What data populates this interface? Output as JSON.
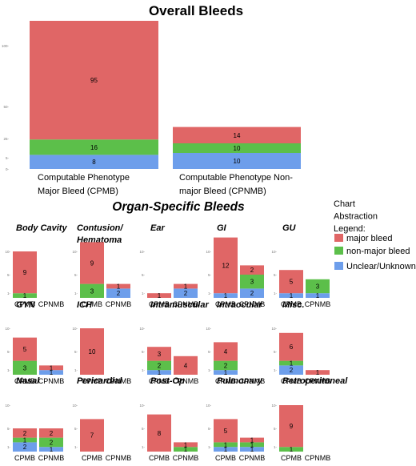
{
  "colors": {
    "major": "#e06666",
    "nonmajor": "#5cbf4a",
    "unclear": "#6d9eeb"
  },
  "chart_data": [
    {
      "type": "bar",
      "stacked": true,
      "title": "Overall Bleeds",
      "categories": [
        "Computable Phenotype Major Bleed (CPMB)",
        "Computable Phenotype Non-major Bleed (CPNMB)"
      ],
      "category_lines": [
        [
          "Computable Phenotype",
          "Major Bleed (CPMB)"
        ],
        [
          "Computable Phenotype Non-",
          "major Bleed (CPNMB)"
        ]
      ],
      "y_ticks": [
        "100-",
        "50-",
        "25-",
        "5-",
        "0-"
      ],
      "series": [
        {
          "name": "Unclear/Unknown",
          "color_key": "unclear",
          "values": [
            8,
            10
          ]
        },
        {
          "name": "non-major bleed",
          "color_key": "nonmajor",
          "values": [
            16,
            10
          ]
        },
        {
          "name": "major bleed",
          "color_key": "major",
          "values": [
            95,
            14
          ]
        }
      ]
    },
    {
      "type": "bar",
      "stacked": true,
      "title": "Organ-Specific Bleeds",
      "categories": [
        "CPMB",
        "CPNMB"
      ],
      "y_ticks": [
        "10-",
        "5-",
        "1-"
      ],
      "panels": [
        {
          "title": [
            "Body Cavity"
          ],
          "CPMB": {
            "major": 9,
            "nonmajor": 1,
            "unclear": 0
          },
          "CPNMB": {
            "major": 0,
            "nonmajor": 0,
            "unclear": 0
          }
        },
        {
          "title": [
            "Contusion/",
            "Hematoma"
          ],
          "CPMB": {
            "major": 9,
            "nonmajor": 3,
            "unclear": 0
          },
          "CPNMB": {
            "major": 1,
            "nonmajor": 0,
            "unclear": 2
          }
        },
        {
          "title": [
            "Ear"
          ],
          "CPMB": {
            "major": 1,
            "nonmajor": 0,
            "unclear": 0
          },
          "CPNMB": {
            "major": 1,
            "nonmajor": 0,
            "unclear": 2
          }
        },
        {
          "title": [
            "GI"
          ],
          "CPMB": {
            "major": 12,
            "nonmajor": 0,
            "unclear": 1
          },
          "CPNMB": {
            "major": 2,
            "nonmajor": 3,
            "unclear": 2
          }
        },
        {
          "title": [
            "GU"
          ],
          "CPMB": {
            "major": 5,
            "nonmajor": 0,
            "unclear": 1
          },
          "CPNMB": {
            "major": 0,
            "nonmajor": 3,
            "unclear": 1
          }
        },
        {
          "title": [
            "GYN"
          ],
          "CPMB": {
            "major": 5,
            "nonmajor": 3,
            "unclear": 0
          },
          "CPNMB": {
            "major": 1,
            "nonmajor": 0,
            "unclear": 1
          }
        },
        {
          "title": [
            "ICH"
          ],
          "CPMB": {
            "major": 10,
            "nonmajor": 0,
            "unclear": 0
          },
          "CPNMB": {
            "major": 0,
            "nonmajor": 0,
            "unclear": 0
          }
        },
        {
          "title": [
            "Intramuscular"
          ],
          "CPMB": {
            "major": 3,
            "nonmajor": 2,
            "unclear": 1
          },
          "CPNMB": {
            "major": 4,
            "nonmajor": 0,
            "unclear": 0
          }
        },
        {
          "title": [
            "Intraocular"
          ],
          "CPMB": {
            "major": 4,
            "nonmajor": 2,
            "unclear": 1
          },
          "CPNMB": {
            "major": 0,
            "nonmajor": 0,
            "unclear": 0
          }
        },
        {
          "title": [
            "Misc."
          ],
          "CPMB": {
            "major": 6,
            "nonmajor": 1,
            "unclear": 2
          },
          "CPNMB": {
            "major": 1,
            "nonmajor": 0,
            "unclear": 0
          }
        },
        {
          "title": [
            "Nasal"
          ],
          "CPMB": {
            "major": 2,
            "nonmajor": 1,
            "unclear": 2
          },
          "CPNMB": {
            "major": 2,
            "nonmajor": 2,
            "unclear": 1
          }
        },
        {
          "title": [
            "Pericardial"
          ],
          "CPMB": {
            "major": 7,
            "nonmajor": 0,
            "unclear": 0
          },
          "CPNMB": {
            "major": 0,
            "nonmajor": 0,
            "unclear": 0
          }
        },
        {
          "title": [
            "Post-Op"
          ],
          "CPMB": {
            "major": 8,
            "nonmajor": 0,
            "unclear": 0
          },
          "CPNMB": {
            "major": 1,
            "nonmajor": 1,
            "unclear": 0
          }
        },
        {
          "title": [
            "Pulmonary"
          ],
          "CPMB": {
            "major": 5,
            "nonmajor": 1,
            "unclear": 1
          },
          "CPNMB": {
            "major": 1,
            "nonmajor": 1,
            "unclear": 1
          }
        },
        {
          "title": [
            "Retroperitoneal"
          ],
          "CPMB": {
            "major": 9,
            "nonmajor": 1,
            "unclear": 0
          },
          "CPNMB": {
            "major": 0,
            "nonmajor": 0,
            "unclear": 0
          }
        }
      ]
    }
  ],
  "legend": {
    "title_lines": [
      "Chart",
      "Abstraction",
      "Legend:"
    ],
    "items": [
      {
        "label": "major bleed",
        "color_key": "major"
      },
      {
        "label": "non-major bleed",
        "color_key": "nonmajor"
      },
      {
        "label": "Unclear/Unknown",
        "color_key": "unclear"
      }
    ]
  }
}
